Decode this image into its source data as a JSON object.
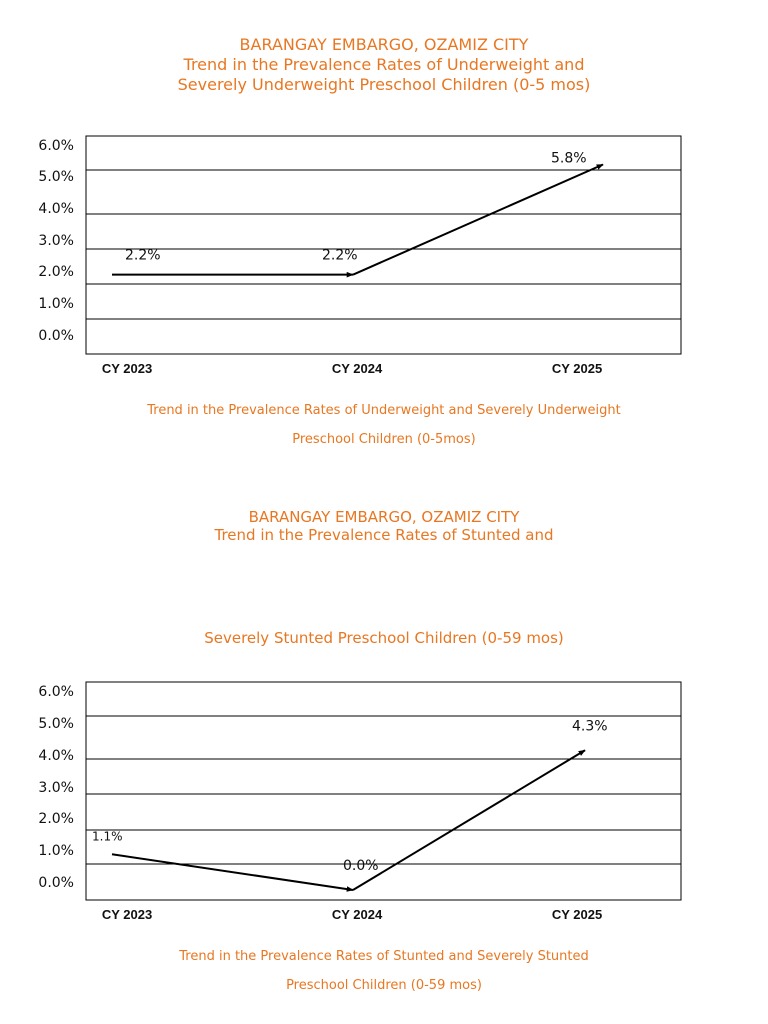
{
  "colors": {
    "accent": "#e87722",
    "line": "#000000",
    "grid": "#000000"
  },
  "chart_data": [
    {
      "type": "line",
      "title_lines": [
        "BARANGAY EMBARGO, OZAMIZ CITY",
        "Trend in the Prevalence Rates of Underweight and",
        "Severely Underweight Preschool Children (0-5 mos)"
      ],
      "caption_lines": [
        "Trend in the Prevalence Rates of Underweight and Severely Underweight",
        "Preschool Children (0-5mos)"
      ],
      "categories": [
        "CY 2023",
        "CY 2024",
        "CY 2025"
      ],
      "values": [
        2.2,
        2.2,
        5.8
      ],
      "data_labels": [
        "2.2%",
        "2.2%",
        "5.8%"
      ],
      "yticks": [
        "0.0%",
        "1.0%",
        "2.0%",
        "3.0%",
        "4.0%",
        "5.0%",
        "6.0%"
      ],
      "ylim": [
        0,
        6
      ],
      "grid": true
    },
    {
      "type": "line",
      "title_lines": [
        "BARANGAY EMBARGO, OZAMIZ CITY",
        "Trend in the Prevalence Rates of Stunted and"
      ],
      "subtitle": "Severely Stunted Preschool Children (0-59 mos)",
      "caption_lines": [
        "Trend in the Prevalence Rates of Stunted and Severely Stunted",
        "Preschool Children (0-59 mos)"
      ],
      "categories": [
        "CY 2023",
        "CY 2024",
        "CY 2025"
      ],
      "values": [
        1.1,
        0.0,
        4.3
      ],
      "data_labels": [
        "1.1%",
        "0.0%",
        "4.3%"
      ],
      "yticks": [
        "0.0%",
        "1.0%",
        "2.0%",
        "3.0%",
        "4.0%",
        "5.0%",
        "6.0%"
      ],
      "ylim": [
        0,
        6
      ],
      "grid": true
    }
  ]
}
